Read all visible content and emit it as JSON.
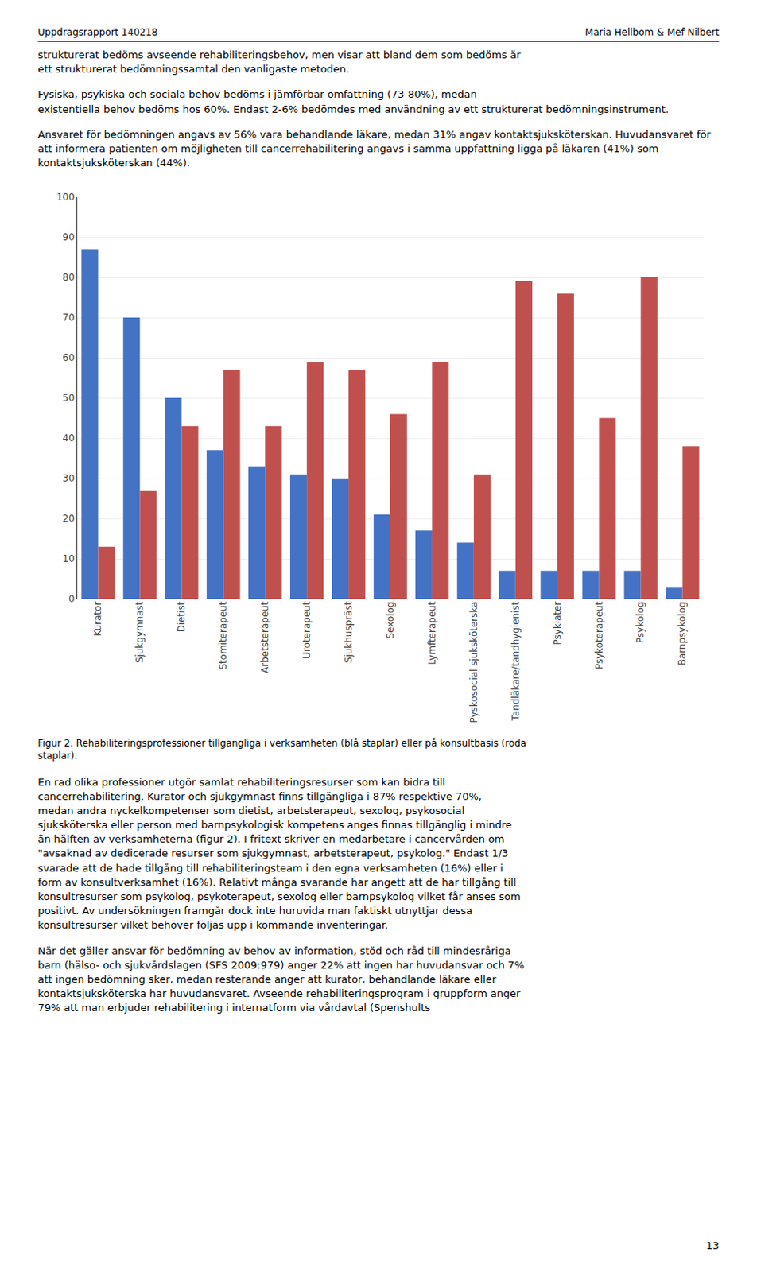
{
  "chart_data": {
    "type": "bar",
    "categories": [
      "Kurator",
      "Sjukgymnast",
      "Dietist",
      "Stomiterapeut",
      "Arbetsterapeut",
      "Uroterapeut",
      "Sjukhuspräst",
      "Sexolog",
      "Lymfterapeut",
      "Pyskosocial sjuksköterska",
      "Tandläkare/tandhygienist",
      "Psykiater",
      "Psykoterapeut",
      "Psykolog",
      "Barnpsykolog"
    ],
    "series": [
      {
        "color": "#4472C4",
        "values": [
          87,
          70,
          50,
          37,
          33,
          31,
          30,
          21,
          17,
          14,
          7,
          7,
          7,
          7,
          3
        ]
      },
      {
        "color": "#C0504D",
        "values": [
          13,
          27,
          43,
          57,
          43,
          59,
          57,
          46,
          59,
          31,
          79,
          76,
          45,
          80,
          38
        ]
      }
    ],
    "ylim": [
      0,
      100
    ],
    "yticks": [
      0,
      10,
      20,
      30,
      40,
      50,
      60,
      70,
      80,
      90,
      100
    ],
    "grid": true,
    "annotations": [
      "Uppdragsrapport 140218",
      "Maria Hellbom & Mef Nilbert",
      "strukturerat bedöms avseende rehabiliteringsbehov, men visar att bland dem som bedöms är\nett strukturerat bedömningssamtal den vanligaste metoden.",
      "Fysiska, psykiska och sociala behov bedöms i jämförbar omfattning (73-80%), medan\nexistentiella behov bedöms hos 60%. Endast 2-6% bedömdes med användning av ett strukturerat bedömningsinstrument.",
      "Ansvaret för bedömningen angavs av 56% vara behandlande läkare, medan 31% angav kontaktsjuksköterskan. Huvudansvaret för att informera patienten om möjligheten till cancerrehabilitering angavs i samma uppfattning ligga på läkaren (41%) som kontaktsjuksköterskan (44%).",
      "Figur 2. Rehabiliteringsprofessioner tillgängliga i verksamheten (blå staplar) eller på konsultbasis (röda\nstaplar).",
      "En rad olika professioner utgör samlat rehabiliteringsresurser som kan bidra till\ncancerrehabilitering. Kurator och sjukgymnast finns tillgängliga i 87% respektive 70%,\nmedan andra nyckelkompetenser som dietist, arbetsterapeut, sexolog, psykosocial\nsjuksköterska eller person med barnpsykologisk kompetens anges finnas tillgänglig i mindre\nän hälften av verksamheterna (figur 2). I fritext skriver en medarbetare i cancervården om\n\"avsaknad av dedicerade resurser som sjukgymnast, arbetsterapeut, psykolog.\" Endast 1/3\nsvarade att de hade tillgång till rehabiliteringsteam i den egna verksamheten (16%) eller i\nform av konsultverksamhet (16%). Relativt många svarande har angett att de har tillgång till\nkonsultresurser som psykolog, psykoterapeut, sexolog eller barnpsykolog vilket får anses som\npositivt. Av undersökningen framgår dock inte huruvida man faktiskt utnyttjar dessa\nkonsultresurser vilket behöver följas upp i kommande inventeringar.",
      "När det gäller ansvar för bedömning av behov av information, stöd och råd till mindesråriga\nbarn (hälso- och sjukvårdslagen (SFS 2009:979) anger 22% att ingen har huvudansvar och 7%\natt ingen bedömning sker, medan resterande anger att kurator, behandlande läkare eller\nkontaktsjuksköterska har huvudansvaret. Avseende rehabiliteringsprogram i gruppform anger\n79% att man erbjuder rehabilitering i internatform via vårdavtal (Spenshults",
      "13"
    ]
  }
}
